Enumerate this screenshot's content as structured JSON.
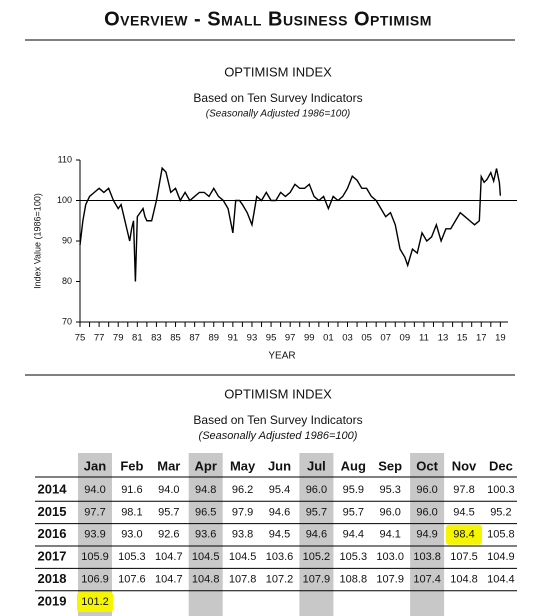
{
  "header": {
    "title": "Overview - Small Business Optimism"
  },
  "chart_data": {
    "type": "line",
    "title": "OPTIMISM INDEX",
    "subtitle": "Based on Ten Survey Indicators",
    "note": "(Seasonally Adjusted 1986=100)",
    "x_label": "YEAR",
    "y_label": "Index Value (1986=100)",
    "xlim": [
      1975,
      2019.8
    ],
    "ylim": [
      70,
      110
    ],
    "xticks": [
      {
        "value": 1975,
        "label": "75"
      },
      {
        "value": 1977,
        "label": "77"
      },
      {
        "value": 1979,
        "label": "79"
      },
      {
        "value": 1981,
        "label": "81"
      },
      {
        "value": 1983,
        "label": "83"
      },
      {
        "value": 1985,
        "label": "85"
      },
      {
        "value": 1987,
        "label": "87"
      },
      {
        "value": 1989,
        "label": "89"
      },
      {
        "value": 1991,
        "label": "91"
      },
      {
        "value": 1993,
        "label": "93"
      },
      {
        "value": 1995,
        "label": "95"
      },
      {
        "value": 1997,
        "label": "97"
      },
      {
        "value": 1999,
        "label": "99"
      },
      {
        "value": 2001,
        "label": "01"
      },
      {
        "value": 2003,
        "label": "03"
      },
      {
        "value": 2005,
        "label": "05"
      },
      {
        "value": 2007,
        "label": "07"
      },
      {
        "value": 2009,
        "label": "09"
      },
      {
        "value": 2011,
        "label": "11"
      },
      {
        "value": 2013,
        "label": "13"
      },
      {
        "value": 2015,
        "label": "15"
      },
      {
        "value": 2017,
        "label": "17"
      },
      {
        "value": 2019,
        "label": "19"
      }
    ],
    "xminor_ticks": [
      1976,
      1978,
      1980,
      1982,
      1984,
      1986,
      1988,
      1990,
      1992,
      1994,
      1996,
      1998,
      2000,
      2002,
      2004,
      2006,
      2008,
      2010,
      2012,
      2014,
      2016,
      2018
    ],
    "yticks": [
      70,
      80,
      90,
      100,
      110
    ],
    "reference_line": 100,
    "series": [
      {
        "color": "#000000",
        "x": [
          1975.0,
          1975.3,
          1975.6,
          1976.0,
          1976.5,
          1977.0,
          1977.5,
          1978.0,
          1978.5,
          1979.0,
          1979.3,
          1979.6,
          1980.0,
          1980.2,
          1980.4,
          1980.6,
          1980.8,
          1981.0,
          1981.3,
          1981.6,
          1981.8,
          1982.0,
          1982.5,
          1983.0,
          1983.3,
          1983.6,
          1984.0,
          1984.5,
          1985.0,
          1985.5,
          1986.0,
          1986.5,
          1987.0,
          1987.5,
          1988.0,
          1988.5,
          1989.0,
          1989.5,
          1990.0,
          1990.5,
          1991.0,
          1991.3,
          1991.7,
          1992.0,
          1992.5,
          1993.0,
          1993.5,
          1994.0,
          1994.5,
          1995.0,
          1995.5,
          1996.0,
          1996.5,
          1997.0,
          1997.5,
          1998.0,
          1998.5,
          1999.0,
          1999.5,
          2000.0,
          2000.5,
          2001.0,
          2001.5,
          2002.0,
          2002.5,
          2003.0,
          2003.5,
          2004.0,
          2004.5,
          2005.0,
          2005.5,
          2006.0,
          2006.5,
          2007.0,
          2007.5,
          2008.0,
          2008.5,
          2009.0,
          2009.3,
          2009.8,
          2010.3,
          2010.8,
          2011.3,
          2011.8,
          2012.3,
          2012.8,
          2013.3,
          2013.8,
          2014.3,
          2014.8,
          2015.3,
          2015.8,
          2016.3,
          2016.8,
          2017.0,
          2017.3,
          2017.6,
          2018.0,
          2018.3,
          2018.6,
          2018.9,
          2019.0
        ],
        "values": [
          89,
          95,
          99,
          101,
          102,
          103,
          102,
          103,
          100,
          98,
          99,
          96,
          92,
          90,
          93,
          95,
          80,
          96,
          97,
          98,
          96,
          95,
          95,
          100,
          104,
          108,
          107,
          102,
          103,
          100,
          102,
          100,
          101,
          102,
          102,
          101,
          103,
          101,
          100,
          98,
          92,
          100,
          100,
          99,
          97,
          94,
          101,
          100,
          102,
          100,
          100,
          102,
          101,
          102,
          104,
          103,
          103,
          104,
          101,
          100,
          101,
          98,
          101,
          100,
          101,
          103,
          106,
          105,
          103,
          103,
          101,
          100,
          98,
          96,
          97,
          94,
          88,
          86,
          84,
          88,
          87,
          92,
          90,
          91,
          94,
          90,
          93,
          93,
          95,
          97,
          96,
          95,
          94,
          95,
          105.9,
          104.5,
          105.2,
          106.9,
          104.8,
          107.9,
          104.4,
          101.2
        ]
      }
    ]
  },
  "table": {
    "title": "OPTIMISM INDEX",
    "subtitle": "Based on Ten Survey Indicators",
    "note": "(Seasonally Adjusted 1986=100)",
    "columns": [
      "Jan",
      "Feb",
      "Mar",
      "Apr",
      "May",
      "Jun",
      "Jul",
      "Aug",
      "Sep",
      "Oct",
      "Nov",
      "Dec"
    ],
    "shaded_columns": [
      0,
      3,
      6,
      9
    ],
    "shade_color": "#c8c8c8",
    "highlight_color": "#f5f500",
    "highlighted_cells": [
      [
        2,
        10
      ],
      [
        5,
        0
      ]
    ],
    "rows": [
      {
        "year": "2014",
        "values": [
          "94.0",
          "91.6",
          "94.0",
          "94.8",
          "96.2",
          "95.4",
          "96.0",
          "95.9",
          "95.3",
          "96.0",
          "97.8",
          "100.3"
        ]
      },
      {
        "year": "2015",
        "values": [
          "97.7",
          "98.1",
          "95.7",
          "96.5",
          "97.9",
          "94.6",
          "95.7",
          "95.7",
          "96.0",
          "96.0",
          "94.5",
          "95.2"
        ]
      },
      {
        "year": "2016",
        "values": [
          "93.9",
          "93.0",
          "92.6",
          "93.6",
          "93.8",
          "94.5",
          "94.6",
          "94.4",
          "94.1",
          "94.9",
          "98.4",
          "105.8"
        ]
      },
      {
        "year": "2017",
        "values": [
          "105.9",
          "105.3",
          "104.7",
          "104.5",
          "104.5",
          "103.6",
          "105.2",
          "105.3",
          "103.0",
          "103.8",
          "107.5",
          "104.9"
        ]
      },
      {
        "year": "2018",
        "values": [
          "106.9",
          "107.6",
          "104.7",
          "104.8",
          "107.8",
          "107.2",
          "107.9",
          "108.8",
          "107.9",
          "107.4",
          "104.8",
          "104.4"
        ]
      },
      {
        "year": "2019",
        "values": [
          "101.2"
        ]
      }
    ]
  }
}
